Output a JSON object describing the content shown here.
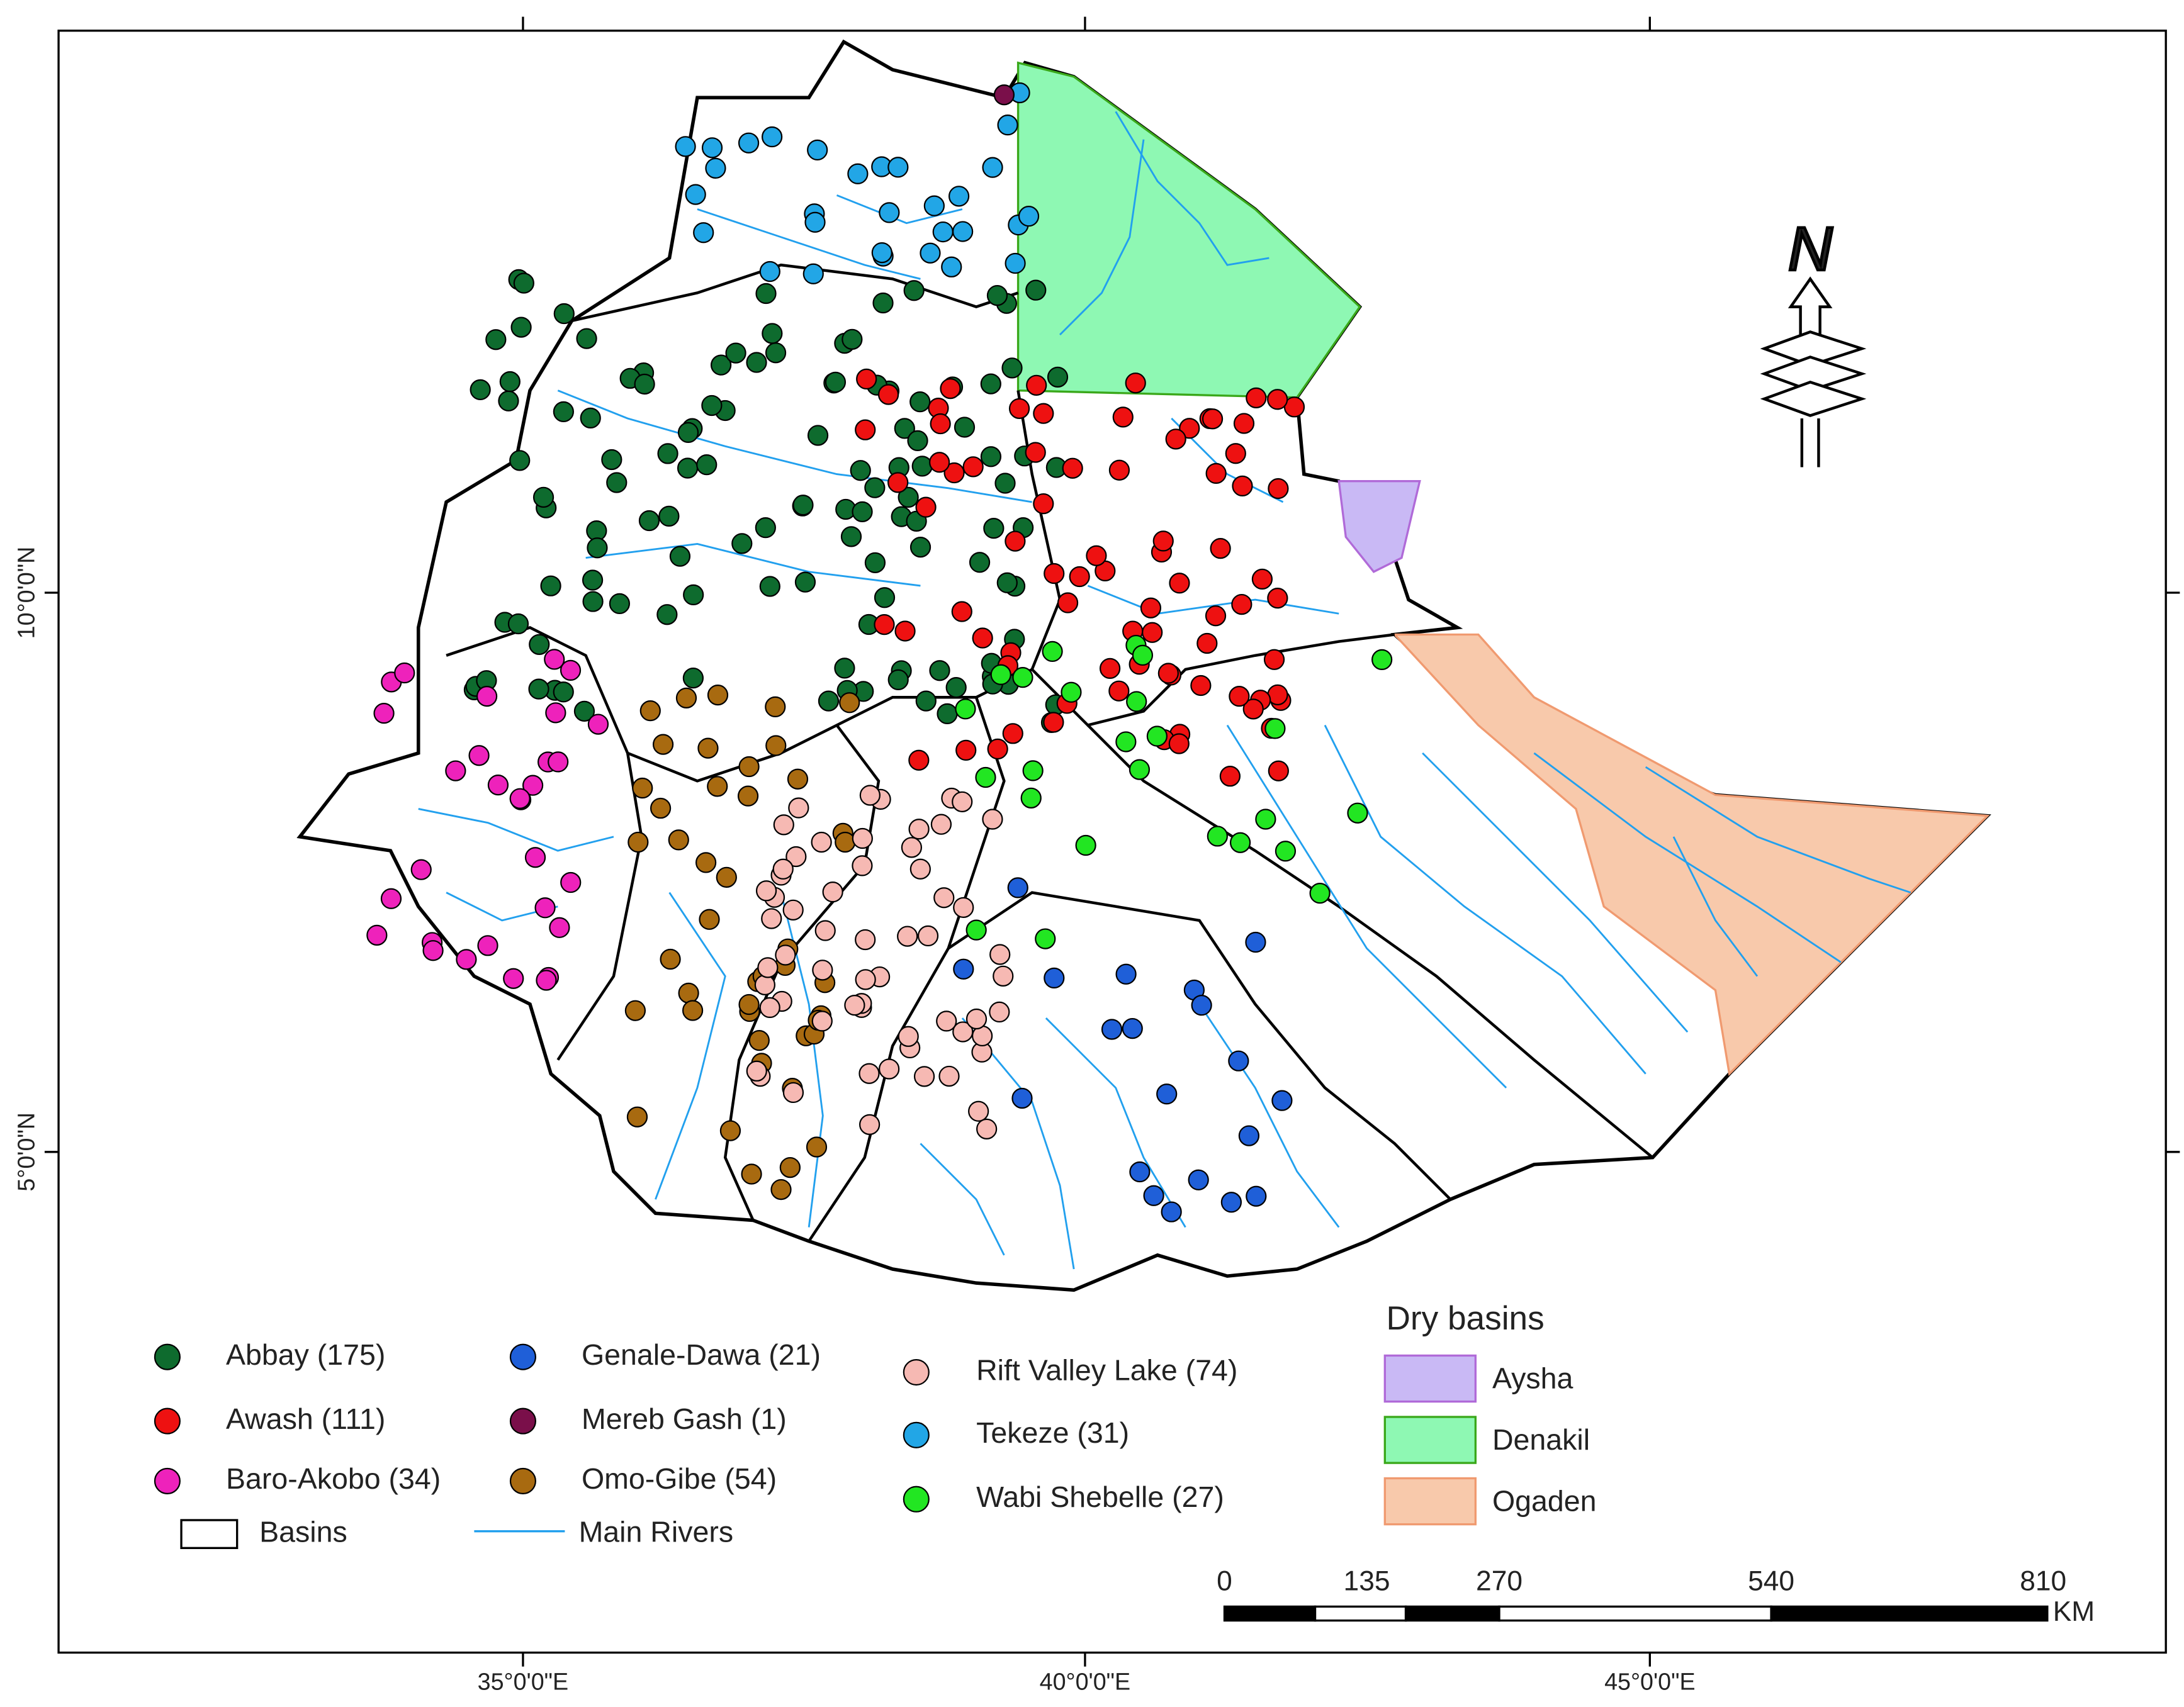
{
  "map": {
    "stations": [
      {
        "label": "Abbay (175)",
        "color": "#0e6b2e"
      },
      {
        "label": "Awash (111)",
        "color": "#ee1111"
      },
      {
        "label": "Baro-Akobo (34)",
        "color": "#ee22bb"
      },
      {
        "label": "Genale-Dawa (21)",
        "color": "#1f5fd8"
      },
      {
        "label": "Mereb Gash (1)",
        "color": "#7a0f4a"
      },
      {
        "label": "Omo-Gibe (54)",
        "color": "#a86a10"
      },
      {
        "label": "Rift Valley Lake (74)",
        "color": "#f6b9b3"
      },
      {
        "label": "Tekeze (31)",
        "color": "#22a6e6"
      },
      {
        "label": "Wabi Shebelle (27)",
        "color": "#22e622"
      }
    ],
    "basins_label": "Basins",
    "rivers_label": "Main Rivers",
    "dry_basins": {
      "title": "Dry basins",
      "items": [
        {
          "label": "Aysha",
          "color": "#c9b9f5"
        },
        {
          "label": "Denakil",
          "color": "#8ef8b3"
        },
        {
          "label": "Ogaden",
          "color": "#f8c9ab"
        }
      ]
    },
    "scale_bar": {
      "labels": [
        "0",
        "135",
        "270",
        "540",
        "810"
      ],
      "unit": "KM"
    },
    "x_labels": [
      "35°0'0\"E",
      "40°0'0\"E",
      "45°0'0\"E"
    ],
    "y_labels": [
      "10°0'0\"N",
      "5°0'0\"N"
    ],
    "north": "N"
  }
}
